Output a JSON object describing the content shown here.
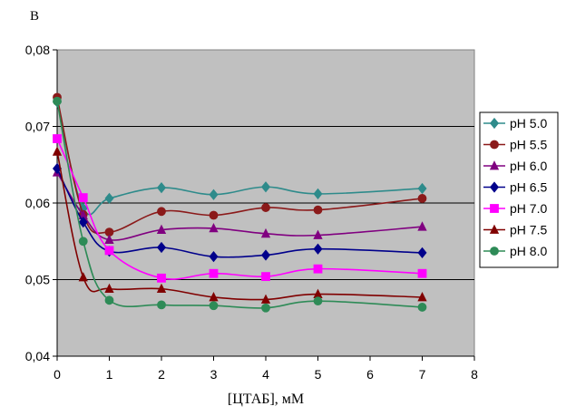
{
  "chart_data": {
    "type": "line",
    "title": "",
    "ylabel": "B",
    "xlabel": "[ЦТАБ], мМ",
    "xlim": [
      0,
      8
    ],
    "ylim": [
      0.04,
      0.08
    ],
    "x_ticks": [
      "0",
      "1",
      "2",
      "3",
      "4",
      "5",
      "6",
      "7",
      "8"
    ],
    "y_ticks": [
      "0,04",
      "0,05",
      "0,06",
      "0,07",
      "0,08"
    ],
    "grid": "horizontal",
    "legend_position": "right",
    "plot_background": "#c0c0c0",
    "x": [
      0,
      0.5,
      1,
      2,
      3,
      4,
      5,
      7
    ],
    "series": [
      {
        "name": "pH 5.0",
        "color": "#2e8b8b",
        "marker": "diamond",
        "values": [
          0.0732,
          0.0593,
          0.0606,
          0.062,
          0.0611,
          0.0621,
          0.0612,
          0.0619
        ]
      },
      {
        "name": "pH 5.5",
        "color": "#8b1a1a",
        "marker": "circle",
        "values": [
          0.0738,
          0.0585,
          0.0562,
          0.0589,
          0.0584,
          0.0594,
          0.0591,
          0.0606
        ]
      },
      {
        "name": "pH 6.0",
        "color": "#800080",
        "marker": "triangle",
        "values": [
          0.064,
          0.0584,
          0.0552,
          0.0565,
          0.0567,
          0.056,
          0.0558,
          0.0569
        ]
      },
      {
        "name": "pH 6.5",
        "color": "#00008b",
        "marker": "diamond",
        "values": [
          0.0645,
          0.0575,
          0.0537,
          0.0542,
          0.053,
          0.0532,
          0.054,
          0.0535
        ]
      },
      {
        "name": "pH 7.0",
        "color": "#ff00ff",
        "marker": "square",
        "values": [
          0.0684,
          0.0607,
          0.0538,
          0.0502,
          0.0508,
          0.0504,
          0.0514,
          0.0508
        ]
      },
      {
        "name": "pH 7.5",
        "color": "#800000",
        "marker": "triangle",
        "values": [
          0.0667,
          0.0503,
          0.0488,
          0.0488,
          0.0477,
          0.0474,
          0.0481,
          0.0477
        ]
      },
      {
        "name": "pH 8.0",
        "color": "#2e8b57",
        "marker": "circle",
        "values": [
          0.0733,
          0.055,
          0.0473,
          0.0467,
          0.0466,
          0.0463,
          0.0472,
          0.0464
        ]
      }
    ]
  }
}
